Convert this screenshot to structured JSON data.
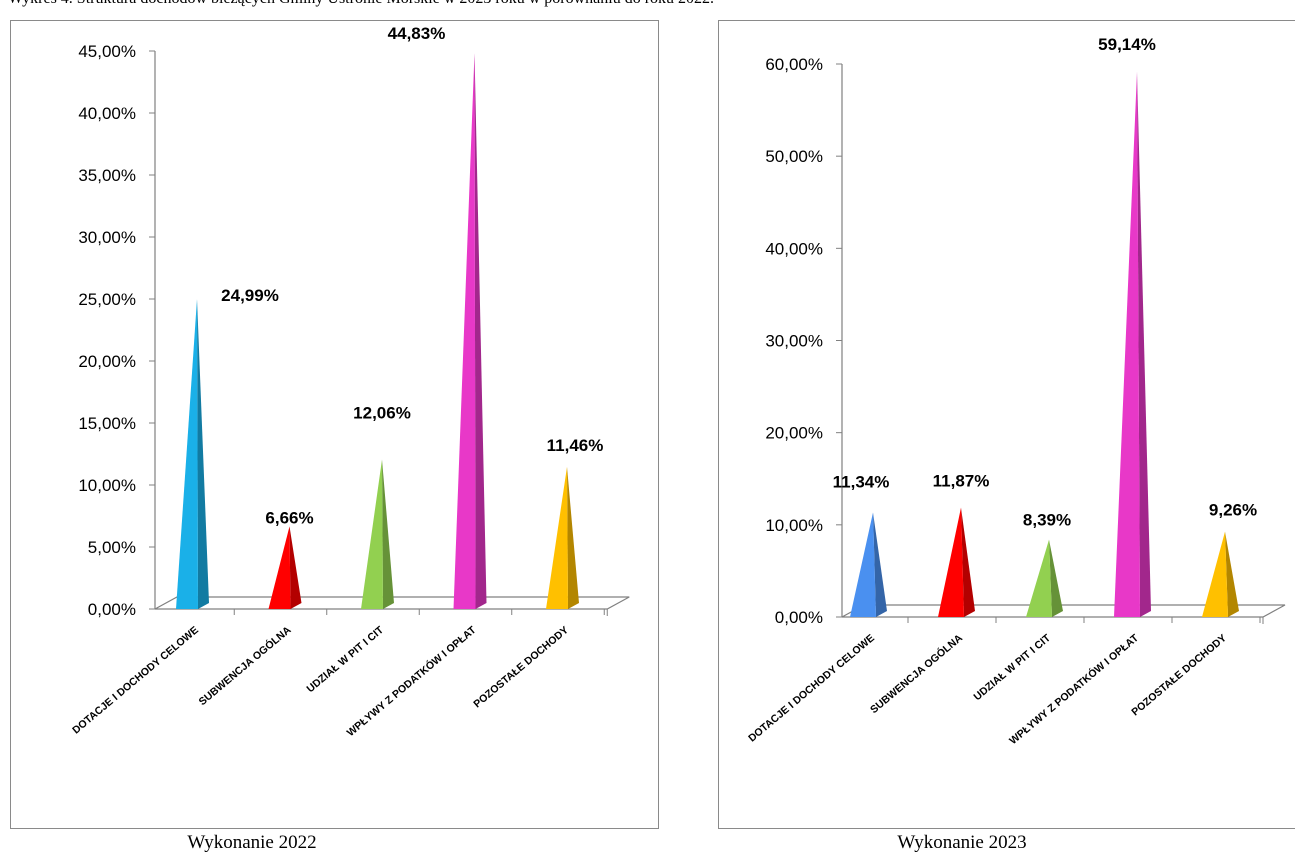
{
  "page_title": "Wykres 4. Struktura dochodów bieżących Gminy Ustronie Morskie w 2023 roku w porównaniu do roku 2022.",
  "chart_data": [
    {
      "type": "bar",
      "caption": "Wykonanie 2022",
      "categories": [
        "DOTACJE I DOCHODY CELOWE",
        "SUBWENCJA OGÓLNA",
        "UDZIAŁ W PIT I CIT",
        "WPŁYWY Z PODATKÓW I OPŁAT",
        "POZOSTAŁE DOCHODY"
      ],
      "values": [
        24.99,
        6.66,
        12.06,
        44.83,
        11.46
      ],
      "value_labels": [
        "24,99%",
        "6,66%",
        "12,06%",
        "44,83%",
        "11,46%"
      ],
      "colors": [
        "#1ab0e8",
        "#ff0000",
        "#92d050",
        "#e838c8",
        "#ffc000"
      ],
      "ylim": [
        0,
        45
      ],
      "yticks": [
        "0,00%",
        "5,00%",
        "10,00%",
        "15,00%",
        "20,00%",
        "25,00%",
        "30,00%",
        "35,00%",
        "40,00%",
        "45,00%"
      ],
      "grid": false
    },
    {
      "type": "bar",
      "caption": "Wykonanie 2023",
      "categories": [
        "DOTACJE I DOCHODY CELOWE",
        "SUBWENCJA OGÓLNA",
        "UDZIAŁ W PIT I CIT",
        "WPŁYWY Z PODATKÓW I OPŁAT",
        "POZOSTAŁE DOCHODY"
      ],
      "values": [
        11.34,
        11.87,
        8.39,
        59.14,
        9.26
      ],
      "value_labels": [
        "11,34%",
        "11,87%",
        "8,39%",
        "59,14%",
        "9,26%"
      ],
      "colors": [
        "#4a90f0",
        "#ff0000",
        "#92d050",
        "#e838c8",
        "#ffc000"
      ],
      "ylim": [
        0,
        60
      ],
      "yticks": [
        "0,00%",
        "10,00%",
        "20,00%",
        "30,00%",
        "40,00%",
        "50,00%",
        "60,00%"
      ],
      "grid": false
    }
  ]
}
